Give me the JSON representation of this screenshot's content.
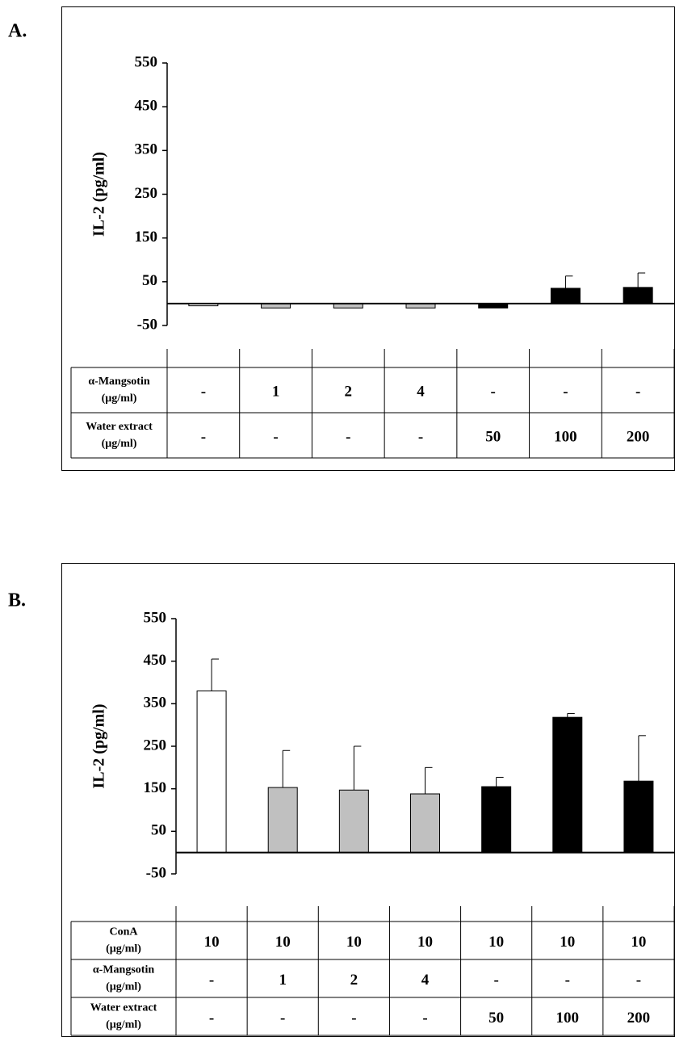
{
  "chart_data": [
    {
      "type": "bar",
      "panel_label": "A.",
      "y_label": "IL-2 (pg/ml)",
      "ylim": [
        -50,
        550
      ],
      "yticks": [
        -50,
        50,
        150,
        250,
        350,
        450,
        550
      ],
      "values": [
        -5,
        -10,
        -10,
        -10,
        -10,
        35,
        37
      ],
      "errors": [
        null,
        null,
        null,
        null,
        null,
        28,
        33
      ],
      "colors": [
        "#ffffff",
        "#c0c0c0",
        "#c0c0c0",
        "#c0c0c0",
        "#000000",
        "#000000",
        "#000000"
      ],
      "table": {
        "rows": [
          {
            "label": "α-Mangsotin",
            "unit": "(µg/ml)",
            "cells": [
              "-",
              "1",
              "2",
              "4",
              "-",
              "-",
              "-"
            ]
          },
          {
            "label": "Water extract",
            "unit": "(µg/ml)",
            "cells": [
              "-",
              "-",
              "-",
              "-",
              "50",
              "100",
              "200"
            ]
          }
        ]
      }
    },
    {
      "type": "bar",
      "panel_label": "B.",
      "y_label": "IL-2 (pg/ml)",
      "ylim": [
        -50,
        550
      ],
      "yticks": [
        -50,
        50,
        150,
        250,
        350,
        450,
        550
      ],
      "values": [
        380,
        153,
        147,
        138,
        155,
        318,
        168
      ],
      "errors": [
        75,
        87,
        103,
        62,
        22,
        9,
        107
      ],
      "colors": [
        "#ffffff",
        "#c0c0c0",
        "#c0c0c0",
        "#c0c0c0",
        "#000000",
        "#000000",
        "#000000"
      ],
      "table": {
        "rows": [
          {
            "label": "ConA",
            "unit": "(µg/ml)",
            "cells": [
              "10",
              "10",
              "10",
              "10",
              "10",
              "10",
              "10"
            ]
          },
          {
            "label": "α-Mangsotin",
            "unit": "(µg/ml)",
            "cells": [
              "-",
              "1",
              "2",
              "4",
              "-",
              "-",
              "-"
            ]
          },
          {
            "label": "Water extract",
            "unit": "(µg/ml)",
            "cells": [
              "-",
              "-",
              "-",
              "-",
              "50",
              "100",
              "200"
            ]
          }
        ]
      }
    }
  ]
}
